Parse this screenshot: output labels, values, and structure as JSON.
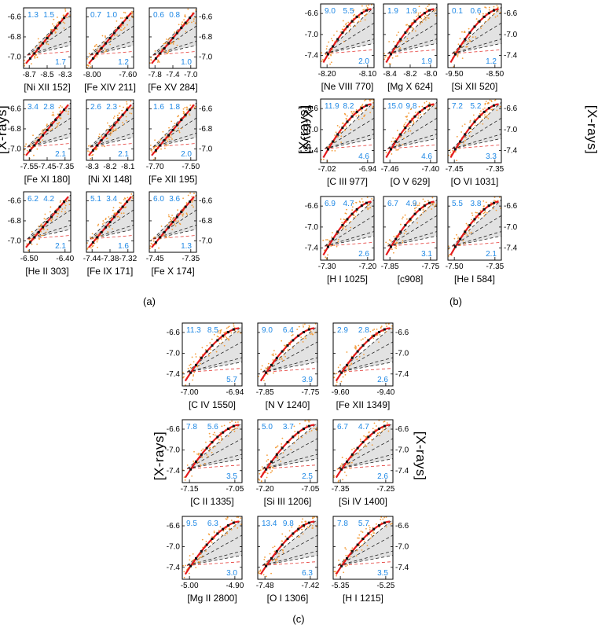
{
  "figure": {
    "ylabel": "[X-rays]",
    "panel_labels": [
      "(a)",
      "(b)",
      "(c)"
    ],
    "y_ticks_a": [
      "-6.6",
      "-6.8",
      "-7.0"
    ],
    "y_ticks_bc": [
      "-6.6",
      "-7.0",
      "-7.4"
    ]
  },
  "chart_data": [
    {
      "type": "scatter",
      "group": "a",
      "title": "[Ni XII 152]",
      "xticks": [
        "-8.7",
        "-8.5",
        "-8.3"
      ],
      "xlim": [
        -8.75,
        -8.25
      ],
      "ylim": [
        -7.15,
        -6.45
      ],
      "slopes": {
        "a": "1.3",
        "b": "1.5",
        "c": "1.7"
      }
    },
    {
      "type": "scatter",
      "group": "a",
      "title": "[Fe XIV 211]",
      "xticks": [
        "-8.00",
        "-7.60"
      ],
      "xlim": [
        -8.2,
        -7.5
      ],
      "ylim": [
        -7.15,
        -6.45
      ],
      "slopes": {
        "a": "0.7",
        "b": "1.0",
        "c": "1.2"
      }
    },
    {
      "type": "scatter",
      "group": "a",
      "title": "[Fe XV 284]",
      "xticks": [
        "-7.8",
        "-7.4",
        "-7.0"
      ],
      "xlim": [
        -7.85,
        -6.95
      ],
      "ylim": [
        -7.15,
        -6.45
      ],
      "slopes": {
        "a": "0.6",
        "b": "0.8",
        "c": "1.0"
      }
    },
    {
      "type": "scatter",
      "group": "a",
      "title": "[Fe XI 180]",
      "xticks": [
        "-7.55",
        "-7.45",
        "-7.35"
      ],
      "xlim": [
        -7.58,
        -7.32
      ],
      "ylim": [
        -7.15,
        -6.45
      ],
      "slopes": {
        "a": "3.4",
        "b": "2.8",
        "c": "2.1"
      }
    },
    {
      "type": "scatter",
      "group": "a",
      "title": "[Ni XI 148]",
      "xticks": [
        "-8.3",
        "-8.2",
        "-8.1"
      ],
      "xlim": [
        -8.36,
        -8.04
      ],
      "ylim": [
        -7.15,
        -6.45
      ],
      "slopes": {
        "a": "2.6",
        "b": "2.3",
        "c": "2.1"
      }
    },
    {
      "type": "scatter",
      "group": "a",
      "title": "[Fe XII 195]",
      "xticks": [
        "-7.70",
        "-7.50"
      ],
      "xlim": [
        -7.78,
        -7.4
      ],
      "ylim": [
        -7.15,
        -6.45
      ],
      "slopes": {
        "a": "1.6",
        "b": "1.8",
        "c": "2.0"
      }
    },
    {
      "type": "scatter",
      "group": "a",
      "title": "[He II 303]",
      "xticks": [
        "-6.50",
        "-6.40"
      ],
      "xlim": [
        -6.52,
        -6.33
      ],
      "ylim": [
        -7.15,
        -6.45
      ],
      "slopes": {
        "a": "6.2",
        "b": "4.2",
        "c": "2.1"
      }
    },
    {
      "type": "scatter",
      "group": "a",
      "title": "[Fe IX 171]",
      "xticks": [
        "-7.44",
        "-7.38",
        "-7.32"
      ],
      "xlim": [
        -7.46,
        -7.3
      ],
      "ylim": [
        -7.15,
        -6.45
      ],
      "slopes": {
        "a": "5.1",
        "b": "3.4",
        "c": "1.6"
      }
    },
    {
      "type": "scatter",
      "group": "a",
      "title": "[Fe X 174]",
      "xticks": [
        "-7.45",
        "-7.35"
      ],
      "xlim": [
        -7.5,
        -7.3
      ],
      "ylim": [
        -7.15,
        -6.45
      ],
      "slopes": {
        "a": "6.0",
        "b": "3.6",
        "c": "1.3"
      }
    },
    {
      "type": "scatter",
      "group": "b",
      "title": "[Ne VIII 770]",
      "xticks": [
        "-8.20",
        "-8.10"
      ],
      "xlim": [
        -8.26,
        -8.04
      ],
      "ylim": [
        -7.5,
        -6.5
      ],
      "slopes": {
        "a": "9.0",
        "b": "5.5",
        "c": "2.0"
      }
    },
    {
      "type": "scatter",
      "group": "b",
      "title": "[Mg X 624]",
      "xticks": [
        "-8.4",
        "-8.2",
        "-8.0"
      ],
      "xlim": [
        -8.48,
        -7.92
      ],
      "ylim": [
        -7.5,
        -6.5
      ],
      "slopes": {
        "a": "1.9",
        "b": "1.9",
        "c": "1.9"
      }
    },
    {
      "type": "scatter",
      "group": "b",
      "title": "[Si XII 520]",
      "xticks": [
        "-9.50",
        "-8.50"
      ],
      "xlim": [
        -9.7,
        -8.2
      ],
      "ylim": [
        -7.5,
        -6.5
      ],
      "slopes": {
        "a": "0.1",
        "b": "0.6",
        "c": "1.2"
      }
    },
    {
      "type": "scatter",
      "group": "b",
      "title": "[C III 977]",
      "xticks": [
        "-7.02",
        "-6.94"
      ],
      "xlim": [
        -7.05,
        -6.91
      ],
      "ylim": [
        -7.5,
        -6.5
      ],
      "slopes": {
        "a": "11.9",
        "b": "8.2",
        "c": "4.6"
      }
    },
    {
      "type": "scatter",
      "group": "b",
      "title": "[O V 629]",
      "xticks": [
        "-7.46",
        "-7.40"
      ],
      "xlim": [
        -7.48,
        -7.37
      ],
      "ylim": [
        -7.5,
        -6.5
      ],
      "slopes": {
        "a": "15.0",
        "b": "9.8",
        "c": "4.6"
      }
    },
    {
      "type": "scatter",
      "group": "b",
      "title": "[O VI 1031]",
      "xticks": [
        "-7.45",
        "-7.35"
      ],
      "xlim": [
        -7.5,
        -7.28
      ],
      "ylim": [
        -7.5,
        -6.5
      ],
      "slopes": {
        "a": "7.2",
        "b": "5.2",
        "c": "3.3"
      }
    },
    {
      "type": "scatter",
      "group": "b",
      "title": "[H I 1025]",
      "xticks": [
        "-7.30",
        "-7.20"
      ],
      "xlim": [
        -7.36,
        -7.14
      ],
      "ylim": [
        -7.5,
        -6.5
      ],
      "slopes": {
        "a": "6.9",
        "b": "4.7",
        "c": "2.6"
      }
    },
    {
      "type": "scatter",
      "group": "b",
      "title": "[c908]",
      "xticks": [
        "-7.85",
        "-7.75"
      ],
      "xlim": [
        -7.9,
        -7.7
      ],
      "ylim": [
        -7.5,
        -6.5
      ],
      "slopes": {
        "a": "6.7",
        "b": "4.9",
        "c": "3.1"
      }
    },
    {
      "type": "scatter",
      "group": "b",
      "title": "[He I 584]",
      "xticks": [
        "-7.50",
        "-7.35"
      ],
      "xlim": [
        -7.55,
        -7.28
      ],
      "ylim": [
        -7.5,
        -6.5
      ],
      "slopes": {
        "a": "5.5",
        "b": "3.8",
        "c": "2.1"
      }
    },
    {
      "type": "scatter",
      "group": "c",
      "title": "[C IV 1550]",
      "xticks": [
        "-7.00",
        "-6.94"
      ],
      "xlim": [
        -7.04,
        -6.91
      ],
      "ylim": [
        -7.5,
        -6.5
      ],
      "slopes": {
        "a": "11.3",
        "b": "8.5",
        "c": "5.7"
      }
    },
    {
      "type": "scatter",
      "group": "c",
      "title": "[N V 1240]",
      "xticks": [
        "-7.85",
        "-7.75"
      ],
      "xlim": [
        -7.92,
        -7.69
      ],
      "ylim": [
        -7.5,
        -6.5
      ],
      "slopes": {
        "a": "9.0",
        "b": "6.4",
        "c": "3.9"
      }
    },
    {
      "type": "scatter",
      "group": "c",
      "title": "[Fe XII 1349]",
      "xticks": [
        "-9.60",
        "-9.40"
      ],
      "xlim": [
        -9.7,
        -9.3
      ],
      "ylim": [
        -7.5,
        -6.5
      ],
      "slopes": {
        "a": "2.9",
        "b": "2.8",
        "c": "2.6"
      }
    },
    {
      "type": "scatter",
      "group": "c",
      "title": "[C II 1335]",
      "xticks": [
        "-7.15",
        "-7.05"
      ],
      "xlim": [
        -7.2,
        -7.0
      ],
      "ylim": [
        -7.5,
        -6.5
      ],
      "slopes": {
        "a": "7.8",
        "b": "5.6",
        "c": "3.5"
      }
    },
    {
      "type": "scatter",
      "group": "c",
      "title": "[Si III 1206]",
      "xticks": [
        "-7.20",
        "-7.05"
      ],
      "xlim": [
        -7.26,
        -7.0
      ],
      "ylim": [
        -7.5,
        -6.5
      ],
      "slopes": {
        "a": "5.0",
        "b": "3.7",
        "c": "2.5"
      }
    },
    {
      "type": "scatter",
      "group": "c",
      "title": "[Si IV 1400]",
      "xticks": [
        "-7.35",
        "-7.25"
      ],
      "xlim": [
        -7.41,
        -7.18
      ],
      "ylim": [
        -7.5,
        -6.5
      ],
      "slopes": {
        "a": "6.7",
        "b": "4.7",
        "c": "2.6"
      }
    },
    {
      "type": "scatter",
      "group": "c",
      "title": "[Mg II 2800]",
      "xticks": [
        "-5.00",
        "-4.90"
      ],
      "xlim": [
        -5.03,
        -4.84
      ],
      "ylim": [
        -7.5,
        -6.5
      ],
      "slopes": {
        "a": "9.5",
        "b": "6.3",
        "c": "3.0"
      }
    },
    {
      "type": "scatter",
      "group": "c",
      "title": "[O I 1306]",
      "xticks": [
        "-7.48",
        "-7.42"
      ],
      "xlim": [
        -7.5,
        -7.39
      ],
      "ylim": [
        -7.5,
        -6.5
      ],
      "slopes": {
        "a": "13.4",
        "b": "9.8",
        "c": "6.3"
      }
    },
    {
      "type": "scatter",
      "group": "c",
      "title": "[H I 1215]",
      "xticks": [
        "-5.35",
        "-5.25"
      ],
      "xlim": [
        -5.4,
        -5.2
      ],
      "ylim": [
        -7.5,
        -6.5
      ],
      "slopes": {
        "a": "7.8",
        "b": "5.7",
        "c": "3.5"
      }
    }
  ]
}
